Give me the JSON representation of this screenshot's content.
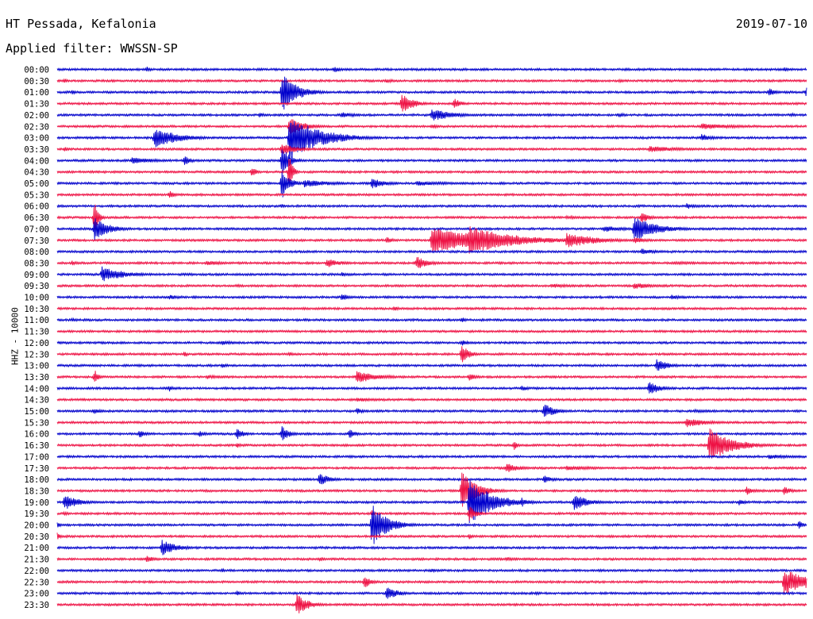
{
  "header": {
    "station": "HT Pessada, Kefalonia",
    "date": "2019-07-10",
    "filter": "Applied filter: WWSSN-SP"
  },
  "colors": {
    "even_hour": "#0000cc",
    "half_hour": "#ee1144"
  },
  "chart_data": {
    "type": "line",
    "title": "HT Pessada, Kefalonia",
    "subtitle": "Applied filter: WWSSN-SP",
    "ylabel": "HHZ - 10000",
    "xlabel": "",
    "rows": [
      "00:00",
      "00:30",
      "01:00",
      "01:30",
      "02:00",
      "02:30",
      "03:00",
      "03:30",
      "04:00",
      "04:30",
      "05:00",
      "05:30",
      "06:00",
      "06:30",
      "07:00",
      "07:30",
      "08:00",
      "08:30",
      "09:00",
      "09:30",
      "10:00",
      "10:30",
      "11:00",
      "11:30",
      "12:00",
      "12:30",
      "13:00",
      "13:30",
      "14:00",
      "14:30",
      "15:00",
      "15:30",
      "16:00",
      "16:30",
      "17:00",
      "17:30",
      "18:00",
      "18:30",
      "19:00",
      "19:30",
      "20:00",
      "20:30",
      "21:00",
      "21:30",
      "22:00",
      "22:30",
      "23:00",
      "23:30"
    ],
    "row_duration_min": 30,
    "events": [
      {
        "row": 0,
        "t": 0.12,
        "amp": 4,
        "dur": 0.005
      },
      {
        "row": 0,
        "t": 0.37,
        "amp": 4,
        "dur": 0.01
      },
      {
        "row": 0,
        "t": 0.97,
        "amp": 3,
        "dur": 0.01
      },
      {
        "row": 1,
        "t": 0.01,
        "amp": 3,
        "dur": 0.005
      },
      {
        "row": 1,
        "t": 0.44,
        "amp": 3,
        "dur": 0.01
      },
      {
        "row": 1,
        "t": 0.75,
        "amp": 2,
        "dur": 0.01
      },
      {
        "row": 2,
        "t": 0.02,
        "amp": 3,
        "dur": 0.005
      },
      {
        "row": 2,
        "t": 0.3,
        "amp": 25,
        "dur": 0.02
      },
      {
        "row": 2,
        "t": 0.32,
        "amp": 5,
        "dur": 0.01
      },
      {
        "row": 2,
        "t": 0.95,
        "amp": 5,
        "dur": 0.01
      },
      {
        "row": 2,
        "t": 1.0,
        "amp": 10,
        "dur": 0.006
      },
      {
        "row": 3,
        "t": 0.46,
        "amp": 14,
        "dur": 0.015
      },
      {
        "row": 3,
        "t": 0.53,
        "amp": 7,
        "dur": 0.01
      },
      {
        "row": 4,
        "t": 0.27,
        "amp": 3,
        "dur": 0.01
      },
      {
        "row": 4,
        "t": 0.38,
        "amp": 4,
        "dur": 0.02
      },
      {
        "row": 4,
        "t": 0.5,
        "amp": 8,
        "dur": 0.03
      },
      {
        "row": 4,
        "t": 0.75,
        "amp": 3,
        "dur": 0.01
      },
      {
        "row": 4,
        "t": 0.98,
        "amp": 3,
        "dur": 0.005
      },
      {
        "row": 5,
        "t": 0.31,
        "amp": 12,
        "dur": 0.02
      },
      {
        "row": 5,
        "t": 0.5,
        "amp": 3,
        "dur": 0.01
      },
      {
        "row": 5,
        "t": 0.86,
        "amp": 4,
        "dur": 0.05
      },
      {
        "row": 6,
        "t": 0.13,
        "amp": 14,
        "dur": 0.03
      },
      {
        "row": 6,
        "t": 0.31,
        "amp": 28,
        "dur": 0.04
      },
      {
        "row": 6,
        "t": 0.86,
        "amp": 5,
        "dur": 0.015
      },
      {
        "row": 7,
        "t": 0.01,
        "amp": 3,
        "dur": 0.005
      },
      {
        "row": 7,
        "t": 0.3,
        "amp": 8,
        "dur": 0.02
      },
      {
        "row": 7,
        "t": 0.79,
        "amp": 4,
        "dur": 0.05
      },
      {
        "row": 8,
        "t": 0.1,
        "amp": 4,
        "dur": 0.04
      },
      {
        "row": 8,
        "t": 0.17,
        "amp": 6,
        "dur": 0.01
      },
      {
        "row": 8,
        "t": 0.3,
        "amp": 20,
        "dur": 0.01
      },
      {
        "row": 9,
        "t": 0.26,
        "amp": 7,
        "dur": 0.006
      },
      {
        "row": 9,
        "t": 0.31,
        "amp": 30,
        "dur": 0.004
      },
      {
        "row": 10,
        "t": 0.3,
        "amp": 20,
        "dur": 0.01
      },
      {
        "row": 10,
        "t": 0.33,
        "amp": 5,
        "dur": 0.04
      },
      {
        "row": 10,
        "t": 0.42,
        "amp": 7,
        "dur": 0.02
      },
      {
        "row": 10,
        "t": 0.48,
        "amp": 3,
        "dur": 0.06
      },
      {
        "row": 11,
        "t": 0.15,
        "amp": 5,
        "dur": 0.01
      },
      {
        "row": 12,
        "t": 0.3,
        "amp": 3,
        "dur": 0.005
      },
      {
        "row": 12,
        "t": 0.84,
        "amp": 4,
        "dur": 0.015
      },
      {
        "row": 13,
        "t": 0.05,
        "amp": 22,
        "dur": 0.005
      },
      {
        "row": 13,
        "t": 0.68,
        "amp": 2,
        "dur": 0.05
      },
      {
        "row": 13,
        "t": 0.78,
        "amp": 8,
        "dur": 0.01
      },
      {
        "row": 14,
        "t": 0.05,
        "amp": 14,
        "dur": 0.02
      },
      {
        "row": 14,
        "t": 0.73,
        "amp": 4,
        "dur": 0.03
      },
      {
        "row": 14,
        "t": 0.77,
        "amp": 16,
        "dur": 0.03
      },
      {
        "row": 15,
        "t": 0.44,
        "amp": 4,
        "dur": 0.01
      },
      {
        "row": 15,
        "t": 0.5,
        "amp": 16,
        "dur": 0.08
      },
      {
        "row": 15,
        "t": 0.55,
        "amp": 18,
        "dur": 0.06
      },
      {
        "row": 15,
        "t": 0.68,
        "amp": 10,
        "dur": 0.04
      },
      {
        "row": 15,
        "t": 0.77,
        "amp": 4,
        "dur": 0.02
      },
      {
        "row": 16,
        "t": 0.78,
        "amp": 4,
        "dur": 0.02
      },
      {
        "row": 17,
        "t": 0.02,
        "amp": 3,
        "dur": 0.01
      },
      {
        "row": 17,
        "t": 0.2,
        "amp": 3,
        "dur": 0.03
      },
      {
        "row": 17,
        "t": 0.36,
        "amp": 6,
        "dur": 0.02
      },
      {
        "row": 17,
        "t": 0.48,
        "amp": 9,
        "dur": 0.015
      },
      {
        "row": 17,
        "t": 0.82,
        "amp": 2,
        "dur": 0.08
      },
      {
        "row": 18,
        "t": 0.06,
        "amp": 10,
        "dur": 0.03
      },
      {
        "row": 18,
        "t": 0.38,
        "amp": 3,
        "dur": 0.01
      },
      {
        "row": 19,
        "t": 0.24,
        "amp": 2,
        "dur": 0.01
      },
      {
        "row": 19,
        "t": 0.66,
        "amp": 3,
        "dur": 0.03
      },
      {
        "row": 19,
        "t": 0.77,
        "amp": 4,
        "dur": 0.03
      },
      {
        "row": 20,
        "t": 0.15,
        "amp": 3,
        "dur": 0.02
      },
      {
        "row": 20,
        "t": 0.38,
        "amp": 5,
        "dur": 0.01
      },
      {
        "row": 20,
        "t": 0.82,
        "amp": 3,
        "dur": 0.02
      },
      {
        "row": 21,
        "t": 0.45,
        "amp": 4,
        "dur": 0.005
      },
      {
        "row": 22,
        "t": 0.02,
        "amp": 2,
        "dur": 0.01
      },
      {
        "row": 22,
        "t": 0.54,
        "amp": 4,
        "dur": 0.005
      },
      {
        "row": 24,
        "t": 0.22,
        "amp": 3,
        "dur": 0.02
      },
      {
        "row": 24,
        "t": 0.54,
        "amp": 4,
        "dur": 0.01
      },
      {
        "row": 25,
        "t": 0.17,
        "amp": 4,
        "dur": 0.005
      },
      {
        "row": 25,
        "t": 0.31,
        "amp": 3,
        "dur": 0.005
      },
      {
        "row": 25,
        "t": 0.54,
        "amp": 12,
        "dur": 0.01
      },
      {
        "row": 26,
        "t": 0.22,
        "amp": 3,
        "dur": 0.01
      },
      {
        "row": 26,
        "t": 0.8,
        "amp": 9,
        "dur": 0.015
      },
      {
        "row": 27,
        "t": 0.05,
        "amp": 10,
        "dur": 0.005
      },
      {
        "row": 27,
        "t": 0.2,
        "amp": 3,
        "dur": 0.02
      },
      {
        "row": 27,
        "t": 0.4,
        "amp": 8,
        "dur": 0.03
      },
      {
        "row": 27,
        "t": 0.55,
        "amp": 5,
        "dur": 0.01
      },
      {
        "row": 28,
        "t": 0.15,
        "amp": 4,
        "dur": 0.005
      },
      {
        "row": 28,
        "t": 0.62,
        "amp": 4,
        "dur": 0.01
      },
      {
        "row": 28,
        "t": 0.79,
        "amp": 9,
        "dur": 0.015
      },
      {
        "row": 29,
        "t": 0.4,
        "amp": 3,
        "dur": 0.03
      },
      {
        "row": 30,
        "t": 0.05,
        "amp": 4,
        "dur": 0.01
      },
      {
        "row": 30,
        "t": 0.4,
        "amp": 4,
        "dur": 0.01
      },
      {
        "row": 30,
        "t": 0.65,
        "amp": 10,
        "dur": 0.015
      },
      {
        "row": 30,
        "t": 0.85,
        "amp": 2,
        "dur": 0.05
      },
      {
        "row": 31,
        "t": 0.84,
        "amp": 6,
        "dur": 0.03
      },
      {
        "row": 32,
        "t": 0.11,
        "amp": 5,
        "dur": 0.01
      },
      {
        "row": 32,
        "t": 0.19,
        "amp": 4,
        "dur": 0.01
      },
      {
        "row": 32,
        "t": 0.24,
        "amp": 7,
        "dur": 0.01
      },
      {
        "row": 32,
        "t": 0.3,
        "amp": 10,
        "dur": 0.01
      },
      {
        "row": 32,
        "t": 0.39,
        "amp": 6,
        "dur": 0.01
      },
      {
        "row": 33,
        "t": 0.24,
        "amp": 4,
        "dur": 0.005
      },
      {
        "row": 33,
        "t": 0.61,
        "amp": 6,
        "dur": 0.005
      },
      {
        "row": 33,
        "t": 0.87,
        "amp": 22,
        "dur": 0.03
      },
      {
        "row": 34,
        "t": 0.95,
        "amp": 3,
        "dur": 0.04
      },
      {
        "row": 35,
        "t": 0.6,
        "amp": 6,
        "dur": 0.02
      },
      {
        "row": 35,
        "t": 0.68,
        "amp": 3,
        "dur": 0.05
      },
      {
        "row": 36,
        "t": 0.35,
        "amp": 8,
        "dur": 0.015
      },
      {
        "row": 36,
        "t": 0.65,
        "amp": 6,
        "dur": 0.01
      },
      {
        "row": 37,
        "t": 0.54,
        "amp": 25,
        "dur": 0.02
      },
      {
        "row": 37,
        "t": 0.92,
        "amp": 6,
        "dur": 0.01
      },
      {
        "row": 37,
        "t": 0.97,
        "amp": 6,
        "dur": 0.01
      },
      {
        "row": 38,
        "t": 0.01,
        "amp": 10,
        "dur": 0.02
      },
      {
        "row": 38,
        "t": 0.55,
        "amp": 30,
        "dur": 0.03
      },
      {
        "row": 38,
        "t": 0.62,
        "amp": 6,
        "dur": 0.01
      },
      {
        "row": 38,
        "t": 0.69,
        "amp": 10,
        "dur": 0.02
      },
      {
        "row": 38,
        "t": 0.91,
        "amp": 4,
        "dur": 0.01
      },
      {
        "row": 39,
        "t": 0.01,
        "amp": 3,
        "dur": 0.005
      },
      {
        "row": 39,
        "t": 0.42,
        "amp": 4,
        "dur": 0.005
      },
      {
        "row": 39,
        "t": 0.55,
        "amp": 10,
        "dur": 0.01
      },
      {
        "row": 40,
        "t": 0.0,
        "amp": 4,
        "dur": 0.005
      },
      {
        "row": 40,
        "t": 0.42,
        "amp": 28,
        "dur": 0.02
      },
      {
        "row": 40,
        "t": 0.99,
        "amp": 6,
        "dur": 0.005
      },
      {
        "row": 41,
        "t": 0.0,
        "amp": 5,
        "dur": 0.005
      },
      {
        "row": 41,
        "t": 0.55,
        "amp": 4,
        "dur": 0.005
      },
      {
        "row": 42,
        "t": 0.14,
        "amp": 10,
        "dur": 0.02
      },
      {
        "row": 43,
        "t": 0.12,
        "amp": 5,
        "dur": 0.01
      },
      {
        "row": 43,
        "t": 0.35,
        "amp": 3,
        "dur": 0.01
      },
      {
        "row": 43,
        "t": 0.6,
        "amp": 3,
        "dur": 0.01
      },
      {
        "row": 44,
        "t": 0.22,
        "amp": 3,
        "dur": 0.005
      },
      {
        "row": 44,
        "t": 0.5,
        "amp": 3,
        "dur": 0.005
      },
      {
        "row": 45,
        "t": 0.41,
        "amp": 8,
        "dur": 0.01
      },
      {
        "row": 45,
        "t": 0.97,
        "amp": 16,
        "dur": 0.04
      },
      {
        "row": 46,
        "t": 0.24,
        "amp": 4,
        "dur": 0.005
      },
      {
        "row": 46,
        "t": 0.44,
        "amp": 9,
        "dur": 0.015
      },
      {
        "row": 46,
        "t": 0.64,
        "amp": 3,
        "dur": 0.005
      },
      {
        "row": 47,
        "t": 0.32,
        "amp": 14,
        "dur": 0.015
      }
    ]
  }
}
